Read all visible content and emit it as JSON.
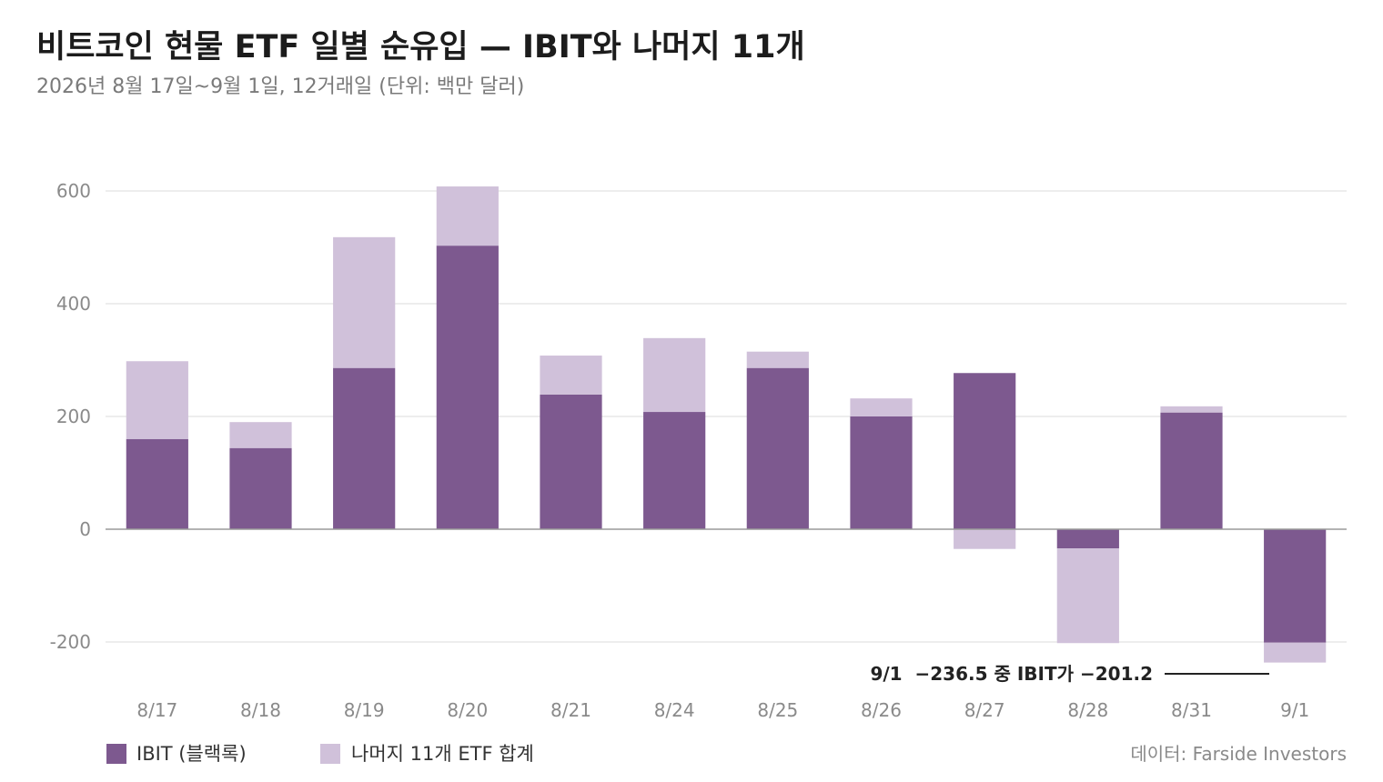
{
  "chart_data": {
    "type": "bar",
    "stacked": true,
    "title": "비트코인 현물 ETF 일별 순유입 — IBIT와 나머지 11개",
    "subtitle": "2026년 8월 17일~9월 1일, 12거래일 (단위: 백만 달러)",
    "categories": [
      "8/17",
      "8/18",
      "8/19",
      "8/20",
      "8/21",
      "8/24",
      "8/25",
      "8/26",
      "8/27",
      "8/28",
      "8/31",
      "9/1"
    ],
    "series": [
      {
        "name": "IBIT (블랙록)",
        "color": "#7d598f",
        "values": [
          160,
          144,
          286,
          503,
          239,
          208,
          286,
          200,
          277,
          -34,
          207,
          -201.2
        ]
      },
      {
        "name": "나머지 11개 ETF 합계",
        "color": "#d0c1da",
        "values": [
          138,
          46,
          232,
          105,
          69,
          131,
          29,
          32,
          -35,
          -168,
          11,
          -35.3
        ]
      }
    ],
    "yticks": [
      600,
      400,
      200,
      0,
      -200
    ],
    "ylim": [
      -200,
      600
    ],
    "grid": true,
    "legend": "bottom-left",
    "annotation": {
      "text": "9/1  −236.5 중 IBIT가 −201.2"
    },
    "source": "데이터: Farside Investors"
  }
}
